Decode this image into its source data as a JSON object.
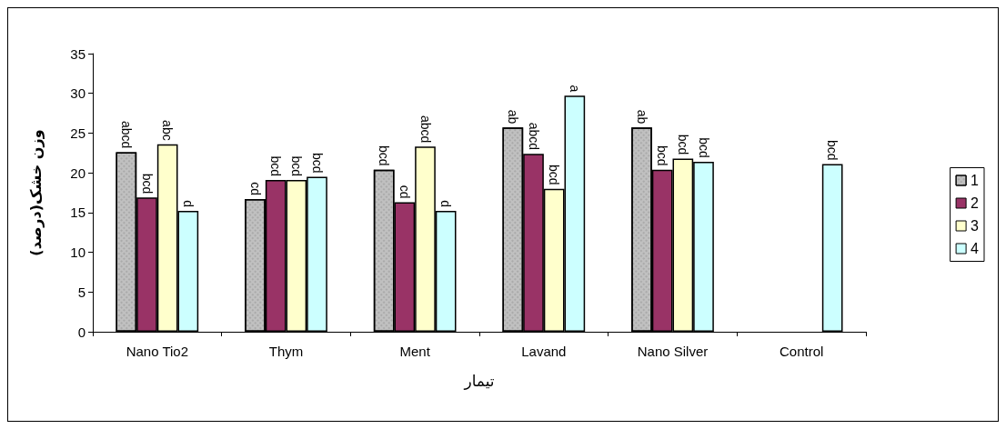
{
  "chart_data": {
    "type": "bar",
    "xlabel": "تیمار",
    "ylabel": "وزن خشک(درصد)",
    "categories": [
      "Nano Tio2",
      "Thym",
      "Ment",
      "Lavand",
      "Nano Silver",
      "Control"
    ],
    "series": [
      {
        "name": "1",
        "color": "#c0c0c0",
        "values": [
          22.6,
          16.7,
          20.4,
          25.7,
          25.7,
          null
        ],
        "value_labels": [
          "abcd",
          "cd",
          "bcd",
          "ab",
          "ab",
          null
        ]
      },
      {
        "name": "2",
        "color": "#993366",
        "values": [
          16.9,
          19.1,
          16.3,
          22.4,
          20.4,
          null
        ],
        "value_labels": [
          "bcd",
          "bcd",
          "cd",
          "abcd",
          "bcd",
          null
        ]
      },
      {
        "name": "3",
        "color": "#ffffcc",
        "values": [
          23.6,
          19.1,
          23.3,
          18.0,
          21.8,
          null
        ],
        "value_labels": [
          "abc",
          "bcd",
          "abcd",
          "bcd",
          "bcd",
          null
        ]
      },
      {
        "name": "4",
        "color": "#ccffff",
        "values": [
          15.2,
          19.5,
          15.2,
          29.7,
          21.4,
          21.1
        ],
        "value_labels": [
          "d",
          "bcd",
          "d",
          "a",
          "bcd",
          "bcd"
        ]
      }
    ],
    "ylim": [
      0,
      35
    ],
    "yticks": [
      0,
      5,
      10,
      15,
      20,
      25,
      30,
      35
    ],
    "grid": false,
    "legend": "right"
  }
}
